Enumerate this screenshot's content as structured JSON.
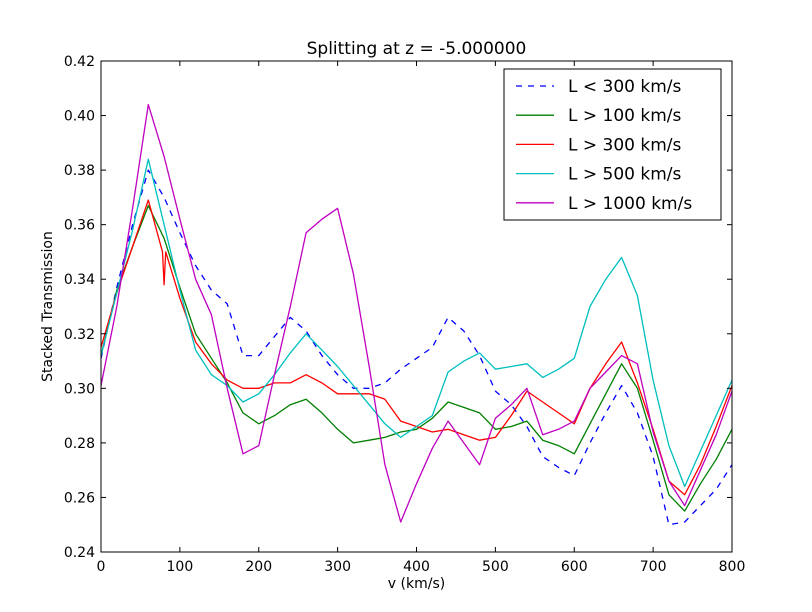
{
  "chart_data": {
    "type": "line",
    "title": "Splitting at z = -5.000000",
    "xlabel": "v (km/s)",
    "ylabel": "Stacked Transmission",
    "xlim": [
      0,
      800
    ],
    "ylim": [
      0.24,
      0.42
    ],
    "xticks": [
      0,
      100,
      200,
      300,
      400,
      500,
      600,
      700,
      800
    ],
    "xtick_labels": [
      "0",
      "100",
      "200",
      "300",
      "400",
      "500",
      "600",
      "700",
      "800"
    ],
    "yticks": [
      0.24,
      0.26,
      0.28,
      0.3,
      0.32,
      0.34,
      0.36,
      0.38,
      0.4,
      0.42
    ],
    "ytick_labels": [
      "0.24",
      "0.26",
      "0.28",
      "0.30",
      "0.32",
      "0.34",
      "0.36",
      "0.38",
      "0.40",
      "0.42"
    ],
    "grid": false,
    "legend_position": "top-right",
    "series": [
      {
        "name": "L < 300 km/s",
        "color": "#0000ff",
        "dashed": true,
        "x": [
          0,
          20,
          40,
          60,
          80,
          100,
          120,
          140,
          160,
          180,
          200,
          220,
          240,
          260,
          280,
          300,
          320,
          340,
          360,
          380,
          400,
          420,
          440,
          460,
          480,
          500,
          520,
          540,
          560,
          580,
          600,
          620,
          640,
          660,
          680,
          700,
          720,
          740,
          760,
          780,
          800
        ],
        "y": [
          0.311,
          0.337,
          0.36,
          0.38,
          0.37,
          0.357,
          0.345,
          0.336,
          0.331,
          0.312,
          0.312,
          0.319,
          0.326,
          0.321,
          0.312,
          0.305,
          0.3,
          0.3,
          0.302,
          0.307,
          0.311,
          0.315,
          0.326,
          0.321,
          0.312,
          0.299,
          0.294,
          0.286,
          0.275,
          0.271,
          0.268,
          0.28,
          0.291,
          0.301,
          0.291,
          0.275,
          0.25,
          0.251,
          0.257,
          0.263,
          0.272
        ]
      },
      {
        "name": "L > 100 km/s",
        "color": "#008000",
        "dashed": false,
        "x": [
          0,
          20,
          40,
          60,
          80,
          100,
          120,
          140,
          160,
          180,
          200,
          220,
          240,
          260,
          280,
          300,
          320,
          340,
          360,
          380,
          400,
          420,
          440,
          460,
          480,
          500,
          520,
          540,
          560,
          580,
          600,
          620,
          640,
          660,
          680,
          700,
          720,
          740,
          760,
          780,
          800
        ],
        "y": [
          0.312,
          0.336,
          0.352,
          0.367,
          0.355,
          0.337,
          0.32,
          0.311,
          0.302,
          0.291,
          0.287,
          0.29,
          0.294,
          0.296,
          0.291,
          0.285,
          0.28,
          0.281,
          0.282,
          0.284,
          0.285,
          0.289,
          0.295,
          0.293,
          0.291,
          0.285,
          0.286,
          0.288,
          0.281,
          0.279,
          0.276,
          0.287,
          0.298,
          0.309,
          0.3,
          0.281,
          0.261,
          0.255,
          0.265,
          0.274,
          0.285
        ]
      },
      {
        "name": "L > 300 km/s",
        "color": "#ff0000",
        "dashed": false,
        "x": [
          0,
          20,
          40,
          60,
          78,
          80,
          82,
          100,
          120,
          140,
          160,
          180,
          200,
          220,
          240,
          260,
          280,
          300,
          320,
          340,
          360,
          380,
          400,
          420,
          440,
          460,
          480,
          500,
          520,
          540,
          560,
          580,
          600,
          620,
          640,
          660,
          680,
          700,
          720,
          740,
          760,
          780,
          800
        ],
        "y": [
          0.315,
          0.335,
          0.352,
          0.369,
          0.35,
          0.338,
          0.35,
          0.333,
          0.317,
          0.309,
          0.303,
          0.3,
          0.3,
          0.302,
          0.302,
          0.305,
          0.302,
          0.298,
          0.298,
          0.298,
          0.296,
          0.288,
          0.286,
          0.284,
          0.285,
          0.283,
          0.281,
          0.282,
          0.29,
          0.299,
          0.295,
          0.291,
          0.287,
          0.3,
          0.309,
          0.317,
          0.302,
          0.285,
          0.266,
          0.261,
          0.272,
          0.286,
          0.301
        ]
      },
      {
        "name": "L > 500 km/s",
        "color": "#00bfbf",
        "dashed": false,
        "x": [
          0,
          20,
          40,
          60,
          80,
          100,
          120,
          140,
          160,
          180,
          200,
          220,
          240,
          260,
          280,
          300,
          320,
          340,
          360,
          380,
          400,
          420,
          440,
          460,
          480,
          500,
          520,
          540,
          560,
          580,
          600,
          620,
          640,
          660,
          680,
          700,
          720,
          740,
          760,
          780,
          800
        ],
        "y": [
          0.312,
          0.335,
          0.358,
          0.384,
          0.36,
          0.336,
          0.314,
          0.305,
          0.301,
          0.295,
          0.298,
          0.305,
          0.313,
          0.32,
          0.314,
          0.308,
          0.301,
          0.294,
          0.287,
          0.282,
          0.286,
          0.29,
          0.306,
          0.31,
          0.313,
          0.307,
          0.308,
          0.309,
          0.304,
          0.307,
          0.311,
          0.33,
          0.34,
          0.348,
          0.334,
          0.303,
          0.279,
          0.264,
          0.277,
          0.29,
          0.303
        ]
      },
      {
        "name": "L > 1000 km/s",
        "color": "#bf00bf",
        "dashed": false,
        "x": [
          0,
          20,
          40,
          60,
          80,
          100,
          120,
          140,
          160,
          180,
          200,
          220,
          240,
          260,
          280,
          300,
          320,
          340,
          360,
          380,
          400,
          420,
          440,
          460,
          480,
          500,
          520,
          540,
          560,
          580,
          600,
          620,
          640,
          660,
          680,
          700,
          720,
          740,
          760,
          780,
          800
        ],
        "y": [
          0.301,
          0.33,
          0.366,
          0.404,
          0.385,
          0.362,
          0.34,
          0.327,
          0.3,
          0.276,
          0.279,
          0.305,
          0.33,
          0.357,
          0.362,
          0.366,
          0.342,
          0.308,
          0.272,
          0.251,
          0.265,
          0.278,
          0.288,
          0.28,
          0.272,
          0.289,
          0.294,
          0.3,
          0.283,
          0.285,
          0.288,
          0.3,
          0.306,
          0.312,
          0.309,
          0.284,
          0.266,
          0.257,
          0.27,
          0.283,
          0.299
        ]
      }
    ]
  }
}
